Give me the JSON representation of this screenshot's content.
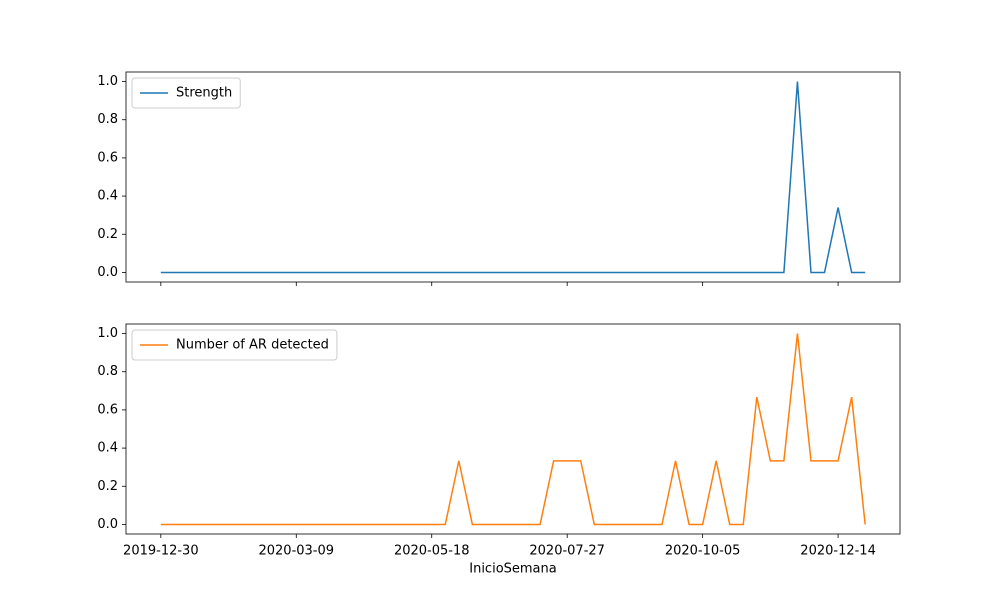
{
  "chart_data": [
    {
      "type": "line",
      "legend": "upper left",
      "x": [
        "2019-12-30",
        "2020-01-06",
        "2020-01-13",
        "2020-01-20",
        "2020-01-27",
        "2020-02-03",
        "2020-02-10",
        "2020-02-17",
        "2020-02-24",
        "2020-03-02",
        "2020-03-09",
        "2020-03-16",
        "2020-03-23",
        "2020-03-30",
        "2020-04-06",
        "2020-04-13",
        "2020-04-20",
        "2020-04-27",
        "2020-05-04",
        "2020-05-11",
        "2020-05-18",
        "2020-05-25",
        "2020-06-01",
        "2020-06-08",
        "2020-06-15",
        "2020-06-22",
        "2020-06-29",
        "2020-07-06",
        "2020-07-13",
        "2020-07-20",
        "2020-07-27",
        "2020-08-03",
        "2020-08-10",
        "2020-08-17",
        "2020-08-24",
        "2020-08-31",
        "2020-09-07",
        "2020-09-14",
        "2020-09-21",
        "2020-09-28",
        "2020-10-05",
        "2020-10-12",
        "2020-10-19",
        "2020-10-26",
        "2020-11-02",
        "2020-11-09",
        "2020-11-16",
        "2020-11-23",
        "2020-11-30",
        "2020-12-07",
        "2020-12-14",
        "2020-12-21",
        "2020-12-28"
      ],
      "series": [
        {
          "name": "Strength",
          "color": "#1f77b4",
          "values": [
            0,
            0,
            0,
            0,
            0,
            0,
            0,
            0,
            0,
            0,
            0,
            0,
            0,
            0,
            0,
            0,
            0,
            0,
            0,
            0,
            0,
            0,
            0,
            0,
            0,
            0,
            0,
            0,
            0,
            0,
            0,
            0,
            0,
            0,
            0,
            0,
            0,
            0,
            0,
            0,
            0,
            0,
            0,
            0,
            0,
            0,
            0,
            1,
            0,
            0,
            0.34,
            0,
            0
          ]
        }
      ],
      "xlim": [
        "2019-12-12",
        "2021-01-15"
      ],
      "ylim": [
        -0.05,
        1.05
      ],
      "yticks": [
        {
          "value": 0,
          "label": "0.0"
        },
        0.2,
        0.4,
        0.6,
        0.8,
        {
          "value": 1,
          "label": "1.0"
        }
      ]
    },
    {
      "type": "line",
      "legend": "upper left",
      "x_label": "InicioSemana",
      "x": [
        "2019-12-30",
        "2020-01-06",
        "2020-01-13",
        "2020-01-20",
        "2020-01-27",
        "2020-02-03",
        "2020-02-10",
        "2020-02-17",
        "2020-02-24",
        "2020-03-02",
        "2020-03-09",
        "2020-03-16",
        "2020-03-23",
        "2020-03-30",
        "2020-04-06",
        "2020-04-13",
        "2020-04-20",
        "2020-04-27",
        "2020-05-04",
        "2020-05-11",
        "2020-05-18",
        "2020-05-25",
        "2020-06-01",
        "2020-06-08",
        "2020-06-15",
        "2020-06-22",
        "2020-06-29",
        "2020-07-06",
        "2020-07-13",
        "2020-07-20",
        "2020-07-27",
        "2020-08-03",
        "2020-08-10",
        "2020-08-17",
        "2020-08-24",
        "2020-08-31",
        "2020-09-07",
        "2020-09-14",
        "2020-09-21",
        "2020-09-28",
        "2020-10-05",
        "2020-10-12",
        "2020-10-19",
        "2020-10-26",
        "2020-11-02",
        "2020-11-09",
        "2020-11-16",
        "2020-11-23",
        "2020-11-30",
        "2020-12-07",
        "2020-12-14",
        "2020-12-21",
        "2020-12-28"
      ],
      "series": [
        {
          "name": "Number of AR detected",
          "color": "#ff7f0e",
          "values": [
            0,
            0,
            0,
            0,
            0,
            0,
            0,
            0,
            0,
            0,
            0,
            0,
            0,
            0,
            0,
            0,
            0,
            0,
            0,
            0,
            0,
            0,
            0.333,
            0,
            0,
            0,
            0,
            0,
            0,
            0.333,
            0.333,
            0.333,
            0,
            0,
            0,
            0,
            0,
            0,
            0.333,
            0,
            0,
            0.333,
            0,
            0,
            0.667,
            0.333,
            0.333,
            1,
            0.333,
            0.333,
            0.333,
            0.667,
            0
          ]
        }
      ],
      "xlim": [
        "2019-12-12",
        "2021-01-15"
      ],
      "xticks": [
        "2019-12-30",
        "2020-03-09",
        "2020-05-18",
        "2020-07-27",
        "2020-10-05",
        "2020-12-14"
      ],
      "ylim": [
        -0.05,
        1.05
      ],
      "yticks": [
        {
          "value": 0,
          "label": "0.0"
        },
        0.2,
        0.4,
        0.6,
        0.8,
        {
          "value": 1,
          "label": "1.0"
        }
      ]
    }
  ]
}
